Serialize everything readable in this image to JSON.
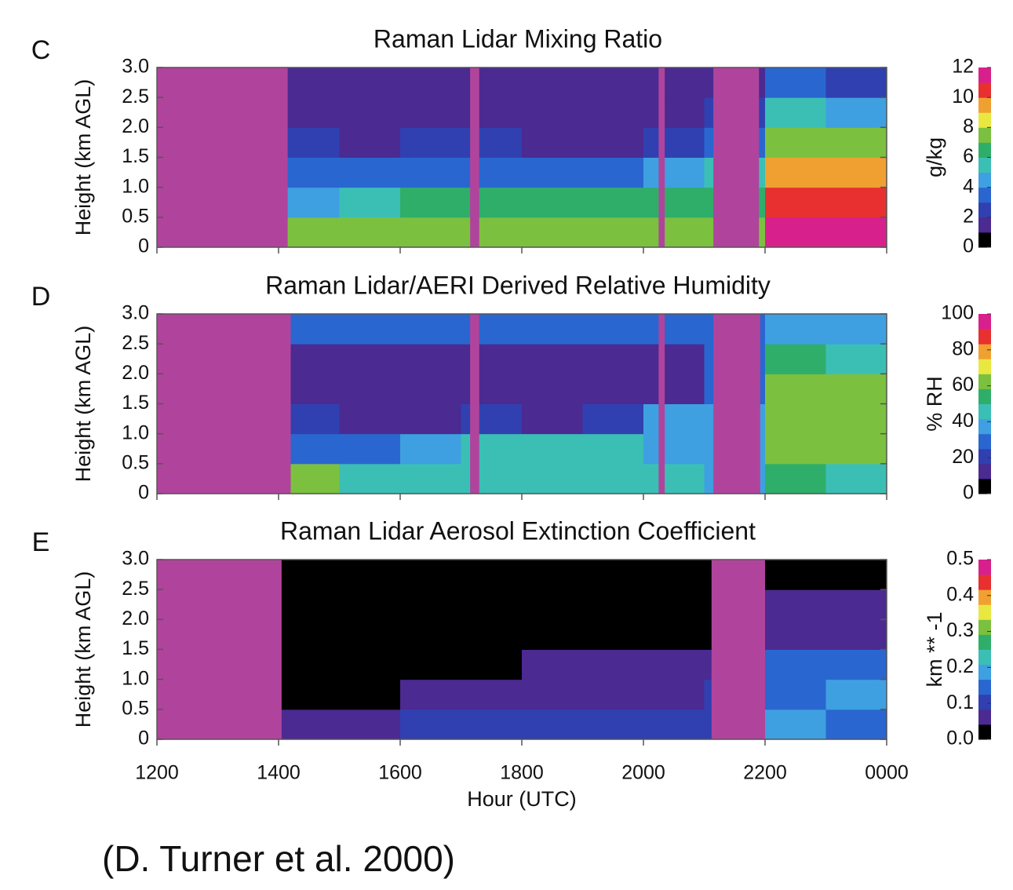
{
  "chart_data": [
    {
      "type": "heatmap",
      "panel_label": "C",
      "title": "Raman Lidar Mixing Ratio",
      "ylabel": "Height (km AGL)",
      "xlim": [
        12,
        24
      ],
      "ylim": [
        0,
        3
      ],
      "yticks": [
        0,
        0.5,
        {
          "value": 1,
          "label": "1.0"
        },
        1.5,
        {
          "value": 2,
          "label": "2.0"
        },
        2.5,
        {
          "value": 3,
          "label": "3.0"
        }
      ],
      "x_edges": [
        12,
        13,
        14,
        15,
        16,
        17,
        18,
        19,
        20,
        21,
        22,
        23,
        24
      ],
      "y_edges": [
        0,
        0.5,
        1,
        1.5,
        2,
        2.5,
        3
      ],
      "z": [
        null,
        null,
        [
          7,
          4,
          3,
          2,
          1,
          1
        ],
        [
          7,
          5,
          3,
          1,
          1,
          1
        ],
        [
          7,
          6,
          3,
          2,
          1,
          1
        ],
        [
          7,
          6,
          3,
          2,
          1,
          1
        ],
        [
          7,
          6,
          3,
          1,
          1,
          1
        ],
        [
          7,
          6,
          3,
          1,
          1,
          1
        ],
        [
          7,
          6,
          4,
          2,
          1,
          1
        ],
        [
          7,
          6,
          5,
          3,
          2,
          1
        ],
        [
          11,
          10,
          9,
          7,
          5,
          3
        ],
        [
          11,
          10,
          9,
          7,
          4,
          2
        ]
      ],
      "missing": [
        [
          12,
          14.15
        ],
        [
          17.15,
          17.3
        ],
        [
          20.25,
          20.35
        ],
        [
          21.15,
          21.9
        ]
      ],
      "missing_color": "#b0449c",
      "zlim": [
        0,
        12
      ],
      "zticks": [
        0,
        2,
        4,
        6,
        8,
        10,
        12
      ],
      "zlabel": "g/kg",
      "colors": [
        "#000000",
        "#4b2a91",
        "#3040b0",
        "#2a66d0",
        "#3ea0e0",
        "#3bbfb5",
        "#2fae6a",
        "#7cc040",
        "#e8e840",
        "#f0a030",
        "#e83030",
        "#d8208c"
      ]
    },
    {
      "type": "heatmap",
      "panel_label": "D",
      "title": "Raman Lidar/AERI Derived Relative Humidity",
      "ylabel": "Height (km AGL)",
      "xlim": [
        12,
        24
      ],
      "ylim": [
        0,
        3
      ],
      "yticks": [
        0,
        0.5,
        {
          "value": 1,
          "label": "1.0"
        },
        1.5,
        {
          "value": 2,
          "label": "2.0"
        },
        2.5,
        {
          "value": 3,
          "label": "3.0"
        }
      ],
      "x_edges": [
        12,
        13,
        14,
        15,
        16,
        17,
        18,
        19,
        20,
        21,
        22,
        23,
        24
      ],
      "y_edges": [
        0,
        0.5,
        1,
        1.5,
        2,
        2.5,
        3
      ],
      "z": [
        null,
        null,
        [
          65,
          30,
          20,
          12,
          12,
          25
        ],
        [
          45,
          30,
          15,
          10,
          12,
          25
        ],
        [
          45,
          40,
          15,
          10,
          10,
          25
        ],
        [
          45,
          45,
          20,
          10,
          10,
          25
        ],
        [
          45,
          45,
          15,
          10,
          10,
          25
        ],
        [
          45,
          45,
          20,
          10,
          10,
          25
        ],
        [
          45,
          40,
          35,
          15,
          15,
          25
        ],
        [
          40,
          40,
          40,
          30,
          25,
          30
        ],
        [
          50,
          65,
          65,
          60,
          50,
          40
        ],
        [
          45,
          65,
          65,
          60,
          45,
          35
        ]
      ],
      "missing": [
        [
          12,
          14.2
        ],
        [
          17.15,
          17.3
        ],
        [
          20.25,
          20.35
        ],
        [
          21.15,
          21.92
        ]
      ],
      "missing_color": "#b0449c",
      "zlim": [
        0,
        100
      ],
      "zticks": [
        0,
        20,
        40,
        60,
        80,
        100
      ],
      "zlabel": "% RH",
      "colors": [
        "#000000",
        "#4b2a91",
        "#3040b0",
        "#2a66d0",
        "#3ea0e0",
        "#3bbfb5",
        "#2fae6a",
        "#7cc040",
        "#e8e840",
        "#f0a030",
        "#e83030",
        "#d8208c"
      ]
    },
    {
      "type": "heatmap",
      "panel_label": "E",
      "title": "Raman Lidar Aerosol Extinction Coefficient",
      "ylabel": "Height (km AGL)",
      "xlabel": "Hour (UTC)",
      "xlim": [
        12,
        24
      ],
      "ylim": [
        0,
        3
      ],
      "xticks": [
        {
          "value": 12,
          "label": "1200"
        },
        {
          "value": 14,
          "label": "1400"
        },
        {
          "value": 16,
          "label": "1600"
        },
        {
          "value": 18,
          "label": "1800"
        },
        {
          "value": 20,
          "label": "2000"
        },
        {
          "value": 22,
          "label": "2200"
        },
        {
          "value": 24,
          "label": "0000"
        }
      ],
      "yticks": [
        0,
        0.5,
        {
          "value": 1,
          "label": "1.0"
        },
        1.5,
        {
          "value": 2,
          "label": "2.0"
        },
        2.5,
        {
          "value": 3,
          "label": "3.0"
        }
      ],
      "x_edges": [
        12,
        13,
        14,
        15,
        16,
        17,
        18,
        19,
        20,
        21,
        22,
        23,
        24
      ],
      "y_edges": [
        0,
        0.5,
        1,
        1.5,
        2,
        2.5,
        3
      ],
      "z": [
        null,
        null,
        [
          0.08,
          0,
          0,
          0,
          0,
          0
        ],
        [
          0.08,
          0.02,
          0,
          0,
          0,
          0
        ],
        [
          0.1,
          0.06,
          0,
          0,
          0,
          0
        ],
        [
          0.11,
          0.08,
          0.04,
          0,
          0,
          0
        ],
        [
          0.11,
          0.08,
          0.06,
          0,
          0,
          0
        ],
        [
          0.11,
          0.08,
          0.06,
          0,
          0,
          0
        ],
        [
          0.1,
          0.08,
          0.06,
          0.02,
          0,
          0
        ],
        [
          0.1,
          0.1,
          0.06,
          0.02,
          0,
          0
        ],
        [
          0.17,
          0.15,
          0.13,
          0.08,
          0.06,
          0.01
        ],
        [
          0.15,
          0.17,
          0.13,
          0.08,
          0.06,
          0.01
        ]
      ],
      "missing": [
        [
          12,
          14.05
        ],
        [
          21.12,
          22
        ]
      ],
      "missing_color": "#b0449c",
      "zlim": [
        0,
        0.5
      ],
      "zticks": [
        {
          "value": 0,
          "label": "0.0"
        },
        0.1,
        0.2,
        0.3,
        0.4,
        0.5
      ],
      "zlabel": "km ** -1",
      "colors": [
        "#000000",
        "#4b2a91",
        "#3040b0",
        "#2a66d0",
        "#3ea0e0",
        "#3bbfb5",
        "#2fae6a",
        "#7cc040",
        "#e8e840",
        "#f0a030",
        "#e83030",
        "#d8208c"
      ]
    }
  ],
  "caption": "(D. Turner et al. 2000)"
}
